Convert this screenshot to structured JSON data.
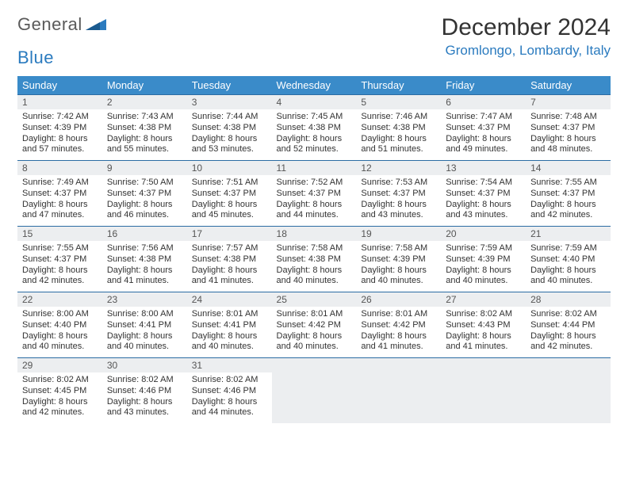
{
  "colors": {
    "header_bg": "#3a8bc9",
    "header_text": "#ffffff",
    "daynum_bg": "#eceef0",
    "cell_border": "#2b6ca3",
    "brand_blue": "#2b7bbf",
    "text": "#333333"
  },
  "logo": {
    "part1": "General",
    "part2": "Blue"
  },
  "title": "December 2024",
  "location": "Gromlongo, Lombardy, Italy",
  "day_headers": [
    "Sunday",
    "Monday",
    "Tuesday",
    "Wednesday",
    "Thursday",
    "Friday",
    "Saturday"
  ],
  "weeks": [
    [
      {
        "n": "1",
        "sr": "Sunrise: 7:42 AM",
        "ss": "Sunset: 4:39 PM",
        "d1": "Daylight: 8 hours",
        "d2": "and 57 minutes."
      },
      {
        "n": "2",
        "sr": "Sunrise: 7:43 AM",
        "ss": "Sunset: 4:38 PM",
        "d1": "Daylight: 8 hours",
        "d2": "and 55 minutes."
      },
      {
        "n": "3",
        "sr": "Sunrise: 7:44 AM",
        "ss": "Sunset: 4:38 PM",
        "d1": "Daylight: 8 hours",
        "d2": "and 53 minutes."
      },
      {
        "n": "4",
        "sr": "Sunrise: 7:45 AM",
        "ss": "Sunset: 4:38 PM",
        "d1": "Daylight: 8 hours",
        "d2": "and 52 minutes."
      },
      {
        "n": "5",
        "sr": "Sunrise: 7:46 AM",
        "ss": "Sunset: 4:38 PM",
        "d1": "Daylight: 8 hours",
        "d2": "and 51 minutes."
      },
      {
        "n": "6",
        "sr": "Sunrise: 7:47 AM",
        "ss": "Sunset: 4:37 PM",
        "d1": "Daylight: 8 hours",
        "d2": "and 49 minutes."
      },
      {
        "n": "7",
        "sr": "Sunrise: 7:48 AM",
        "ss": "Sunset: 4:37 PM",
        "d1": "Daylight: 8 hours",
        "d2": "and 48 minutes."
      }
    ],
    [
      {
        "n": "8",
        "sr": "Sunrise: 7:49 AM",
        "ss": "Sunset: 4:37 PM",
        "d1": "Daylight: 8 hours",
        "d2": "and 47 minutes."
      },
      {
        "n": "9",
        "sr": "Sunrise: 7:50 AM",
        "ss": "Sunset: 4:37 PM",
        "d1": "Daylight: 8 hours",
        "d2": "and 46 minutes."
      },
      {
        "n": "10",
        "sr": "Sunrise: 7:51 AM",
        "ss": "Sunset: 4:37 PM",
        "d1": "Daylight: 8 hours",
        "d2": "and 45 minutes."
      },
      {
        "n": "11",
        "sr": "Sunrise: 7:52 AM",
        "ss": "Sunset: 4:37 PM",
        "d1": "Daylight: 8 hours",
        "d2": "and 44 minutes."
      },
      {
        "n": "12",
        "sr": "Sunrise: 7:53 AM",
        "ss": "Sunset: 4:37 PM",
        "d1": "Daylight: 8 hours",
        "d2": "and 43 minutes."
      },
      {
        "n": "13",
        "sr": "Sunrise: 7:54 AM",
        "ss": "Sunset: 4:37 PM",
        "d1": "Daylight: 8 hours",
        "d2": "and 43 minutes."
      },
      {
        "n": "14",
        "sr": "Sunrise: 7:55 AM",
        "ss": "Sunset: 4:37 PM",
        "d1": "Daylight: 8 hours",
        "d2": "and 42 minutes."
      }
    ],
    [
      {
        "n": "15",
        "sr": "Sunrise: 7:55 AM",
        "ss": "Sunset: 4:37 PM",
        "d1": "Daylight: 8 hours",
        "d2": "and 42 minutes."
      },
      {
        "n": "16",
        "sr": "Sunrise: 7:56 AM",
        "ss": "Sunset: 4:38 PM",
        "d1": "Daylight: 8 hours",
        "d2": "and 41 minutes."
      },
      {
        "n": "17",
        "sr": "Sunrise: 7:57 AM",
        "ss": "Sunset: 4:38 PM",
        "d1": "Daylight: 8 hours",
        "d2": "and 41 minutes."
      },
      {
        "n": "18",
        "sr": "Sunrise: 7:58 AM",
        "ss": "Sunset: 4:38 PM",
        "d1": "Daylight: 8 hours",
        "d2": "and 40 minutes."
      },
      {
        "n": "19",
        "sr": "Sunrise: 7:58 AM",
        "ss": "Sunset: 4:39 PM",
        "d1": "Daylight: 8 hours",
        "d2": "and 40 minutes."
      },
      {
        "n": "20",
        "sr": "Sunrise: 7:59 AM",
        "ss": "Sunset: 4:39 PM",
        "d1": "Daylight: 8 hours",
        "d2": "and 40 minutes."
      },
      {
        "n": "21",
        "sr": "Sunrise: 7:59 AM",
        "ss": "Sunset: 4:40 PM",
        "d1": "Daylight: 8 hours",
        "d2": "and 40 minutes."
      }
    ],
    [
      {
        "n": "22",
        "sr": "Sunrise: 8:00 AM",
        "ss": "Sunset: 4:40 PM",
        "d1": "Daylight: 8 hours",
        "d2": "and 40 minutes."
      },
      {
        "n": "23",
        "sr": "Sunrise: 8:00 AM",
        "ss": "Sunset: 4:41 PM",
        "d1": "Daylight: 8 hours",
        "d2": "and 40 minutes."
      },
      {
        "n": "24",
        "sr": "Sunrise: 8:01 AM",
        "ss": "Sunset: 4:41 PM",
        "d1": "Daylight: 8 hours",
        "d2": "and 40 minutes."
      },
      {
        "n": "25",
        "sr": "Sunrise: 8:01 AM",
        "ss": "Sunset: 4:42 PM",
        "d1": "Daylight: 8 hours",
        "d2": "and 40 minutes."
      },
      {
        "n": "26",
        "sr": "Sunrise: 8:01 AM",
        "ss": "Sunset: 4:42 PM",
        "d1": "Daylight: 8 hours",
        "d2": "and 41 minutes."
      },
      {
        "n": "27",
        "sr": "Sunrise: 8:02 AM",
        "ss": "Sunset: 4:43 PM",
        "d1": "Daylight: 8 hours",
        "d2": "and 41 minutes."
      },
      {
        "n": "28",
        "sr": "Sunrise: 8:02 AM",
        "ss": "Sunset: 4:44 PM",
        "d1": "Daylight: 8 hours",
        "d2": "and 42 minutes."
      }
    ],
    [
      {
        "n": "29",
        "sr": "Sunrise: 8:02 AM",
        "ss": "Sunset: 4:45 PM",
        "d1": "Daylight: 8 hours",
        "d2": "and 42 minutes."
      },
      {
        "n": "30",
        "sr": "Sunrise: 8:02 AM",
        "ss": "Sunset: 4:46 PM",
        "d1": "Daylight: 8 hours",
        "d2": "and 43 minutes."
      },
      {
        "n": "31",
        "sr": "Sunrise: 8:02 AM",
        "ss": "Sunset: 4:46 PM",
        "d1": "Daylight: 8 hours",
        "d2": "and 44 minutes."
      },
      null,
      null,
      null,
      null
    ]
  ]
}
